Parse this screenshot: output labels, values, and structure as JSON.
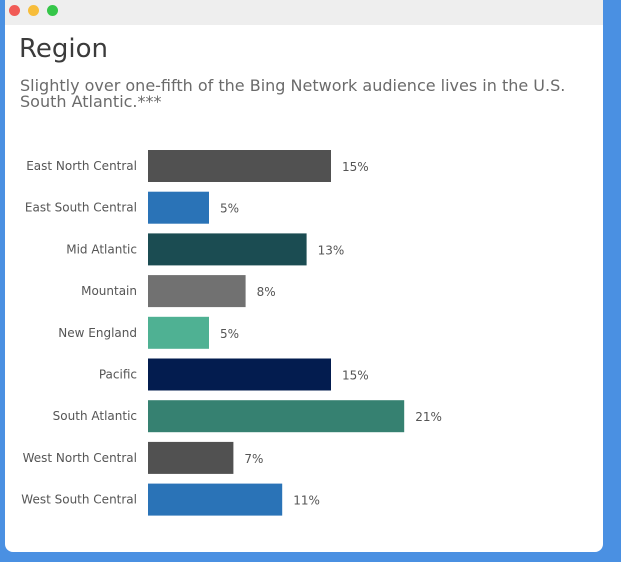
{
  "window": {
    "controls": [
      "close",
      "minimize",
      "maximize"
    ]
  },
  "title": "Region",
  "subtitle": "Slightly over one-fifth of the Bing Network audience lives in the U.S. South Atlantic.***",
  "chart_data": {
    "type": "bar",
    "orientation": "horizontal",
    "title": "",
    "xlabel": "",
    "ylabel": "",
    "categories": [
      "East North Central",
      "East South Central",
      "Mid Atlantic",
      "Mountain",
      "New England",
      "Pacific",
      "South Atlantic",
      "West North Central",
      "West South Central"
    ],
    "values": [
      15,
      5,
      13,
      8,
      5,
      15,
      21,
      7,
      11
    ],
    "labels": [
      "15%",
      "5%",
      "13%",
      "8%",
      "5%",
      "15%",
      "21%",
      "7%",
      "11%"
    ],
    "colors": [
      "#515151",
      "#2a73b7",
      "#1b4c52",
      "#717171",
      "#4fb193",
      "#031c4f",
      "#368171",
      "#515151",
      "#2a73b7"
    ],
    "xlim": [
      0,
      25
    ],
    "grid": false,
    "legend": "none"
  }
}
